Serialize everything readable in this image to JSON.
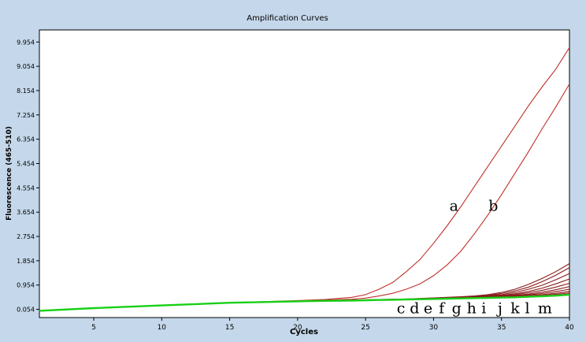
{
  "colors": {
    "background": "#c5d7ea",
    "plot_background": "#ffffff",
    "amplified_curve": "#c0312b",
    "baseline_curves": "#8a1a1a",
    "green_curve": "#18d018",
    "axis": "#000000"
  },
  "chart_data": {
    "type": "line",
    "title": "Amplification Curves",
    "xlabel": "Cycles",
    "ylabel": "Fluorescence (465-510)",
    "xlim": [
      1,
      40
    ],
    "ylim": [
      -0.25,
      10.4
    ],
    "x_ticks": [
      5,
      10,
      15,
      20,
      25,
      30,
      35,
      40
    ],
    "x_tick_labels": [
      "5",
      "10",
      "15",
      "20",
      "25",
      "30",
      "35",
      "40"
    ],
    "y_ticks": [
      0.054,
      0.954,
      1.854,
      2.754,
      3.654,
      4.554,
      5.454,
      6.354,
      7.254,
      8.154,
      9.054,
      9.954
    ],
    "y_tick_labels": [
      "0.054",
      "0.954",
      "1.854",
      "2.754",
      "3.654",
      "4.554",
      "5.454",
      "6.354",
      "7.254",
      "8.154",
      "9.054",
      "9.954"
    ],
    "x": [
      1,
      5,
      10,
      15,
      20,
      22,
      24,
      25,
      26,
      27,
      28,
      29,
      30,
      31,
      32,
      33,
      34,
      35,
      36,
      37,
      38,
      39,
      40
    ],
    "series": [
      {
        "label": "a",
        "values": [
          0.0,
          0.1,
          0.2,
          0.3,
          0.38,
          0.42,
          0.5,
          0.6,
          0.8,
          1.05,
          1.45,
          1.9,
          2.5,
          3.15,
          3.85,
          4.6,
          5.35,
          6.1,
          6.85,
          7.6,
          8.3,
          8.95,
          9.75
        ]
      },
      {
        "label": "b",
        "values": [
          0.0,
          0.1,
          0.2,
          0.3,
          0.37,
          0.4,
          0.43,
          0.47,
          0.55,
          0.65,
          0.8,
          1.0,
          1.3,
          1.7,
          2.2,
          2.85,
          3.55,
          4.3,
          5.1,
          5.9,
          6.75,
          7.55,
          8.4
        ]
      },
      {
        "label": "c",
        "values": [
          0.0,
          0.1,
          0.2,
          0.3,
          0.36,
          0.38,
          0.4,
          0.41,
          0.42,
          0.43,
          0.44,
          0.46,
          0.48,
          0.5,
          0.52,
          0.55,
          0.6,
          0.68,
          0.8,
          0.98,
          1.2,
          1.45,
          1.75
        ]
      },
      {
        "label": "d",
        "values": [
          0.0,
          0.1,
          0.2,
          0.3,
          0.36,
          0.38,
          0.39,
          0.4,
          0.41,
          0.42,
          0.43,
          0.45,
          0.47,
          0.49,
          0.51,
          0.53,
          0.57,
          0.64,
          0.74,
          0.88,
          1.08,
          1.32,
          1.6
        ]
      },
      {
        "label": "e",
        "values": [
          0.0,
          0.1,
          0.2,
          0.3,
          0.36,
          0.38,
          0.39,
          0.4,
          0.41,
          0.42,
          0.43,
          0.44,
          0.46,
          0.48,
          0.5,
          0.52,
          0.55,
          0.6,
          0.68,
          0.8,
          0.95,
          1.15,
          1.38
        ]
      },
      {
        "label": "f",
        "values": [
          0.0,
          0.1,
          0.2,
          0.3,
          0.36,
          0.38,
          0.39,
          0.4,
          0.41,
          0.42,
          0.43,
          0.44,
          0.45,
          0.47,
          0.49,
          0.51,
          0.53,
          0.57,
          0.63,
          0.72,
          0.84,
          1.0,
          1.18
        ]
      },
      {
        "label": "g",
        "values": [
          0.0,
          0.1,
          0.2,
          0.3,
          0.35,
          0.37,
          0.38,
          0.39,
          0.4,
          0.41,
          0.42,
          0.43,
          0.44,
          0.46,
          0.48,
          0.5,
          0.52,
          0.55,
          0.6,
          0.67,
          0.76,
          0.88,
          1.02
        ]
      },
      {
        "label": "h",
        "values": [
          0.0,
          0.1,
          0.2,
          0.3,
          0.35,
          0.37,
          0.38,
          0.39,
          0.4,
          0.41,
          0.42,
          0.43,
          0.44,
          0.45,
          0.47,
          0.49,
          0.51,
          0.53,
          0.57,
          0.62,
          0.69,
          0.78,
          0.9
        ]
      },
      {
        "label": "i",
        "values": [
          0.0,
          0.1,
          0.2,
          0.3,
          0.35,
          0.37,
          0.38,
          0.39,
          0.4,
          0.41,
          0.42,
          0.43,
          0.44,
          0.45,
          0.46,
          0.48,
          0.5,
          0.52,
          0.55,
          0.59,
          0.64,
          0.71,
          0.8
        ]
      },
      {
        "label": "j",
        "values": [
          0.0,
          0.1,
          0.2,
          0.3,
          0.35,
          0.37,
          0.38,
          0.39,
          0.4,
          0.41,
          0.42,
          0.43,
          0.44,
          0.45,
          0.46,
          0.47,
          0.49,
          0.51,
          0.53,
          0.56,
          0.6,
          0.65,
          0.72
        ]
      },
      {
        "label": "k",
        "values": [
          0.0,
          0.1,
          0.2,
          0.3,
          0.35,
          0.37,
          0.38,
          0.39,
          0.4,
          0.41,
          0.42,
          0.43,
          0.44,
          0.45,
          0.46,
          0.47,
          0.48,
          0.5,
          0.52,
          0.54,
          0.57,
          0.61,
          0.66
        ]
      },
      {
        "label": "l",
        "values": [
          0.0,
          0.1,
          0.2,
          0.3,
          0.35,
          0.37,
          0.38,
          0.39,
          0.4,
          0.41,
          0.42,
          0.43,
          0.44,
          0.45,
          0.46,
          0.47,
          0.48,
          0.49,
          0.51,
          0.53,
          0.55,
          0.58,
          0.62
        ]
      },
      {
        "label": "m",
        "values": [
          0.0,
          0.1,
          0.2,
          0.3,
          0.35,
          0.37,
          0.38,
          0.39,
          0.4,
          0.41,
          0.42,
          0.43,
          0.44,
          0.45,
          0.46,
          0.47,
          0.48,
          0.49,
          0.5,
          0.52,
          0.54,
          0.56,
          0.6
        ]
      }
    ],
    "annotations": [
      {
        "text": "a",
        "x": 31.5,
        "y": 3.7
      },
      {
        "text": "b",
        "x": 34.4,
        "y": 3.7
      },
      {
        "text": "c",
        "x": 27.6,
        "y": -0.09
      },
      {
        "text": "d",
        "x": 28.6,
        "y": -0.09
      },
      {
        "text": "e",
        "x": 29.6,
        "y": -0.09
      },
      {
        "text": "f",
        "x": 30.6,
        "y": -0.09
      },
      {
        "text": "g",
        "x": 31.7,
        "y": -0.09
      },
      {
        "text": "h",
        "x": 32.8,
        "y": -0.09
      },
      {
        "text": "i",
        "x": 33.7,
        "y": -0.09
      },
      {
        "text": "j",
        "x": 34.9,
        "y": -0.09
      },
      {
        "text": "k",
        "x": 36.0,
        "y": -0.09
      },
      {
        "text": "l",
        "x": 36.9,
        "y": -0.09
      },
      {
        "text": "m",
        "x": 38.2,
        "y": -0.09
      }
    ],
    "grid": false,
    "legend": "none"
  }
}
